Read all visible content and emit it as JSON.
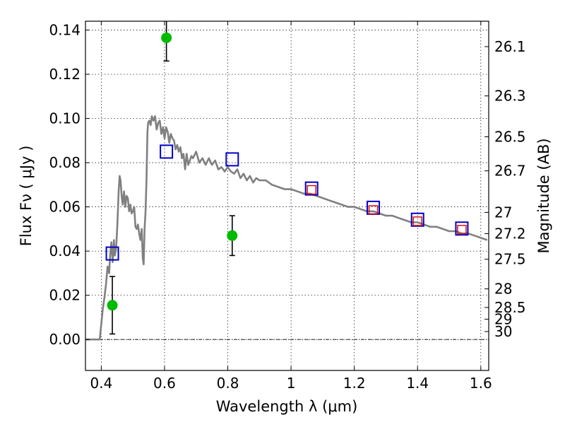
{
  "chart_data": {
    "type": "scatter",
    "title": "",
    "xlabel": "Wavelength  λ (μm)",
    "ylabel": "Flux  Fν  ( μJy )",
    "ylabel_right": "Magnitude (AB)",
    "xlim": [
      0.35,
      1.625
    ],
    "ylim": [
      -0.014,
      0.144
    ],
    "grid": true,
    "legend": "none",
    "x_ticks": [
      {
        "value": 0.4,
        "label": "0.4"
      },
      {
        "value": 0.6,
        "label": "0.6"
      },
      {
        "value": 0.8,
        "label": "0.8"
      },
      {
        "value": 1.0,
        "label": "1"
      },
      {
        "value": 1.2,
        "label": "1.2"
      },
      {
        "value": 1.4,
        "label": "1.4"
      },
      {
        "value": 1.6,
        "label": "1.6"
      }
    ],
    "y_ticks": [
      {
        "value": 0.0,
        "label": "0.00"
      },
      {
        "value": 0.02,
        "label": "0.02"
      },
      {
        "value": 0.04,
        "label": "0.04"
      },
      {
        "value": 0.06,
        "label": "0.06"
      },
      {
        "value": 0.08,
        "label": "0.08"
      },
      {
        "value": 0.1,
        "label": "0.10"
      },
      {
        "value": 0.12,
        "label": "0.12"
      },
      {
        "value": 0.14,
        "label": "0.14"
      }
    ],
    "right_ticks": [
      {
        "label": "26.1",
        "flux": 0.1325
      },
      {
        "label": "26.3",
        "flux": 0.1102
      },
      {
        "label": "26.5",
        "flux": 0.0917
      },
      {
        "label": "26.7",
        "flux": 0.0763
      },
      {
        "label": "27",
        "flux": 0.0575
      },
      {
        "label": "27.2",
        "flux": 0.0479
      },
      {
        "label": "27.5",
        "flux": 0.0363
      },
      {
        "label": "28",
        "flux": 0.0229
      },
      {
        "label": "28.5",
        "flux": 0.0145
      },
      {
        "label": "29",
        "flux": 0.0092
      },
      {
        "label": "30",
        "flux": 0.0036
      }
    ],
    "series": [
      {
        "kind": "model_sed",
        "color": "#808080",
        "x": [
          0.35,
          0.395,
          0.4,
          0.405,
          0.41,
          0.415,
          0.42,
          0.425,
          0.428,
          0.432,
          0.436,
          0.44,
          0.443,
          0.447,
          0.451,
          0.455,
          0.458,
          0.461,
          0.465,
          0.468,
          0.472,
          0.476,
          0.48,
          0.484,
          0.488,
          0.492,
          0.496,
          0.5,
          0.504,
          0.508,
          0.512,
          0.516,
          0.52,
          0.524,
          0.528,
          0.531,
          0.534,
          0.537,
          0.54,
          0.543,
          0.546,
          0.548,
          0.552,
          0.556,
          0.56,
          0.565,
          0.57,
          0.575,
          0.58,
          0.585,
          0.59,
          0.595,
          0.6,
          0.605,
          0.61,
          0.615,
          0.62,
          0.625,
          0.63,
          0.635,
          0.64,
          0.645,
          0.65,
          0.655,
          0.66,
          0.665,
          0.67,
          0.675,
          0.68,
          0.685,
          0.69,
          0.7,
          0.71,
          0.72,
          0.73,
          0.74,
          0.75,
          0.76,
          0.77,
          0.78,
          0.79,
          0.8,
          0.81,
          0.82,
          0.83,
          0.84,
          0.85,
          0.86,
          0.87,
          0.88,
          0.89,
          0.9,
          0.92,
          0.94,
          0.96,
          0.98,
          1.0,
          1.02,
          1.04,
          1.06,
          1.08,
          1.1,
          1.12,
          1.14,
          1.16,
          1.18,
          1.2,
          1.22,
          1.24,
          1.26,
          1.28,
          1.3,
          1.32,
          1.34,
          1.36,
          1.38,
          1.4,
          1.42,
          1.44,
          1.46,
          1.48,
          1.5,
          1.52,
          1.54,
          1.56,
          1.58,
          1.6,
          1.62
        ],
        "y": [
          0.0,
          0.0,
          0.007,
          0.014,
          0.019,
          0.025,
          0.033,
          0.03,
          0.038,
          0.044,
          0.035,
          0.045,
          0.038,
          0.041,
          0.052,
          0.067,
          0.074,
          0.072,
          0.064,
          0.061,
          0.067,
          0.06,
          0.065,
          0.064,
          0.058,
          0.061,
          0.057,
          0.058,
          0.06,
          0.051,
          0.05,
          0.052,
          0.048,
          0.045,
          0.05,
          0.037,
          0.034,
          0.05,
          0.058,
          0.072,
          0.094,
          0.098,
          0.099,
          0.097,
          0.101,
          0.099,
          0.101,
          0.095,
          0.098,
          0.099,
          0.093,
          0.096,
          0.091,
          0.096,
          0.094,
          0.089,
          0.093,
          0.091,
          0.09,
          0.086,
          0.088,
          0.085,
          0.087,
          0.082,
          0.084,
          0.077,
          0.084,
          0.079,
          0.081,
          0.083,
          0.082,
          0.085,
          0.08,
          0.082,
          0.079,
          0.082,
          0.079,
          0.081,
          0.077,
          0.078,
          0.076,
          0.078,
          0.076,
          0.075,
          0.077,
          0.073,
          0.075,
          0.072,
          0.074,
          0.071,
          0.073,
          0.072,
          0.072,
          0.07,
          0.069,
          0.068,
          0.068,
          0.067,
          0.066,
          0.066,
          0.065,
          0.064,
          0.063,
          0.062,
          0.061,
          0.06,
          0.06,
          0.059,
          0.058,
          0.058,
          0.057,
          0.056,
          0.056,
          0.055,
          0.054,
          0.053,
          0.053,
          0.052,
          0.051,
          0.051,
          0.05,
          0.049,
          0.049,
          0.048,
          0.048,
          0.047,
          0.046,
          0.045
        ]
      },
      {
        "kind": "model_bandpass_flux",
        "marker": "square",
        "color": "#0000cc",
        "x": [
          0.435,
          0.606,
          0.814,
          1.065,
          1.26,
          1.4,
          1.54
        ],
        "y": [
          0.0389,
          0.085,
          0.0815,
          0.0683,
          0.0596,
          0.0542,
          0.0502
        ]
      },
      {
        "kind": "fitted_flux",
        "marker": "square",
        "color": "#dd0000",
        "x": [
          1.065,
          1.26,
          1.4,
          1.54
        ],
        "y": [
          0.0677,
          0.0586,
          0.0535,
          0.0497
        ]
      },
      {
        "kind": "observed_flux",
        "marker": "circle",
        "color": "#00bb00",
        "x": [
          0.435,
          0.606,
          0.814
        ],
        "y": [
          0.0155,
          0.1365,
          0.047
        ],
        "err_low": [
          0.013,
          0.0105,
          0.009
        ],
        "err_high": [
          0.013,
          0.0105,
          0.009
        ]
      }
    ]
  }
}
